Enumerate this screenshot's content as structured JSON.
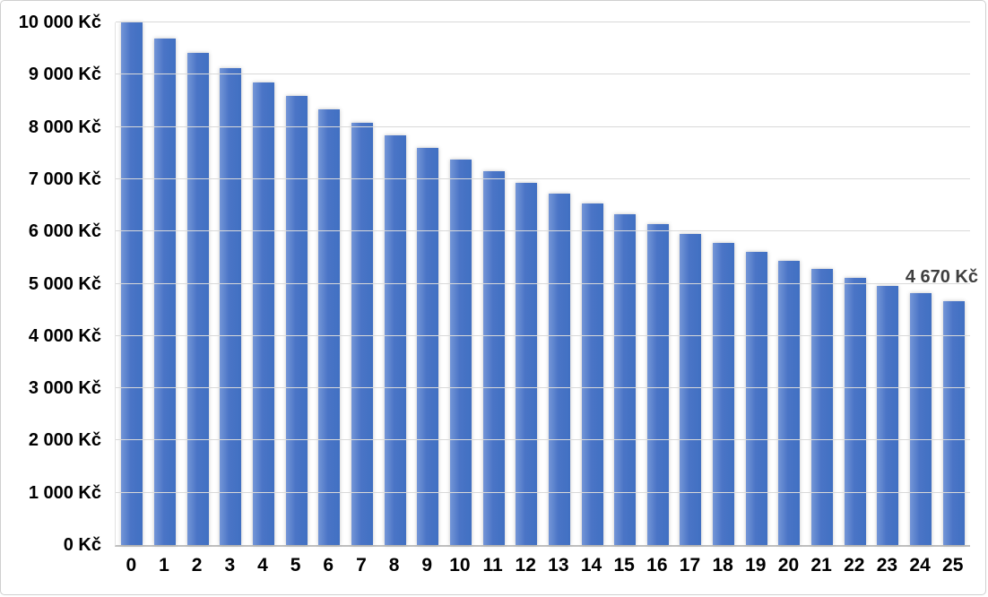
{
  "chart_data": {
    "type": "bar",
    "title": "",
    "xlabel": "",
    "ylabel": "",
    "categories": [
      "0",
      "1",
      "2",
      "3",
      "4",
      "5",
      "6",
      "7",
      "8",
      "9",
      "10",
      "11",
      "12",
      "13",
      "14",
      "15",
      "16",
      "17",
      "18",
      "19",
      "20",
      "21",
      "22",
      "23",
      "24",
      "25"
    ],
    "values": [
      10000,
      9700,
      9409,
      9127,
      8853,
      8587,
      8330,
      8080,
      7837,
      7602,
      7374,
      7153,
      6938,
      6730,
      6528,
      6333,
      6143,
      5958,
      5780,
      5606,
      5438,
      5275,
      5117,
      4963,
      4814,
      4670
    ],
    "ylim": [
      0,
      10000
    ],
    "y_tick_step": 1000,
    "y_tick_labels": [
      "0 Kč",
      "1 000 Kč",
      "2 000 Kč",
      "3 000 Kč",
      "4 000 Kč",
      "5 000 Kč",
      "6 000 Kč",
      "7 000 Kč",
      "8 000 Kč",
      "9 000 Kč",
      "10 000 Kč"
    ],
    "grid": "horizontal",
    "legend": "none",
    "annotation": {
      "text": "4 670 Kč",
      "category": "25",
      "value": 4670
    },
    "colors": {
      "bar_fill": "#4472c4",
      "bar_fill_light_edge": "#7496d7",
      "gridline": "#d9d9d9",
      "axis_line": "#bfbfbf",
      "tick_text": "#000000",
      "annotation_text": "#3f3f3f",
      "background": "#ffffff",
      "frame_border": "#cfcfcf"
    }
  }
}
